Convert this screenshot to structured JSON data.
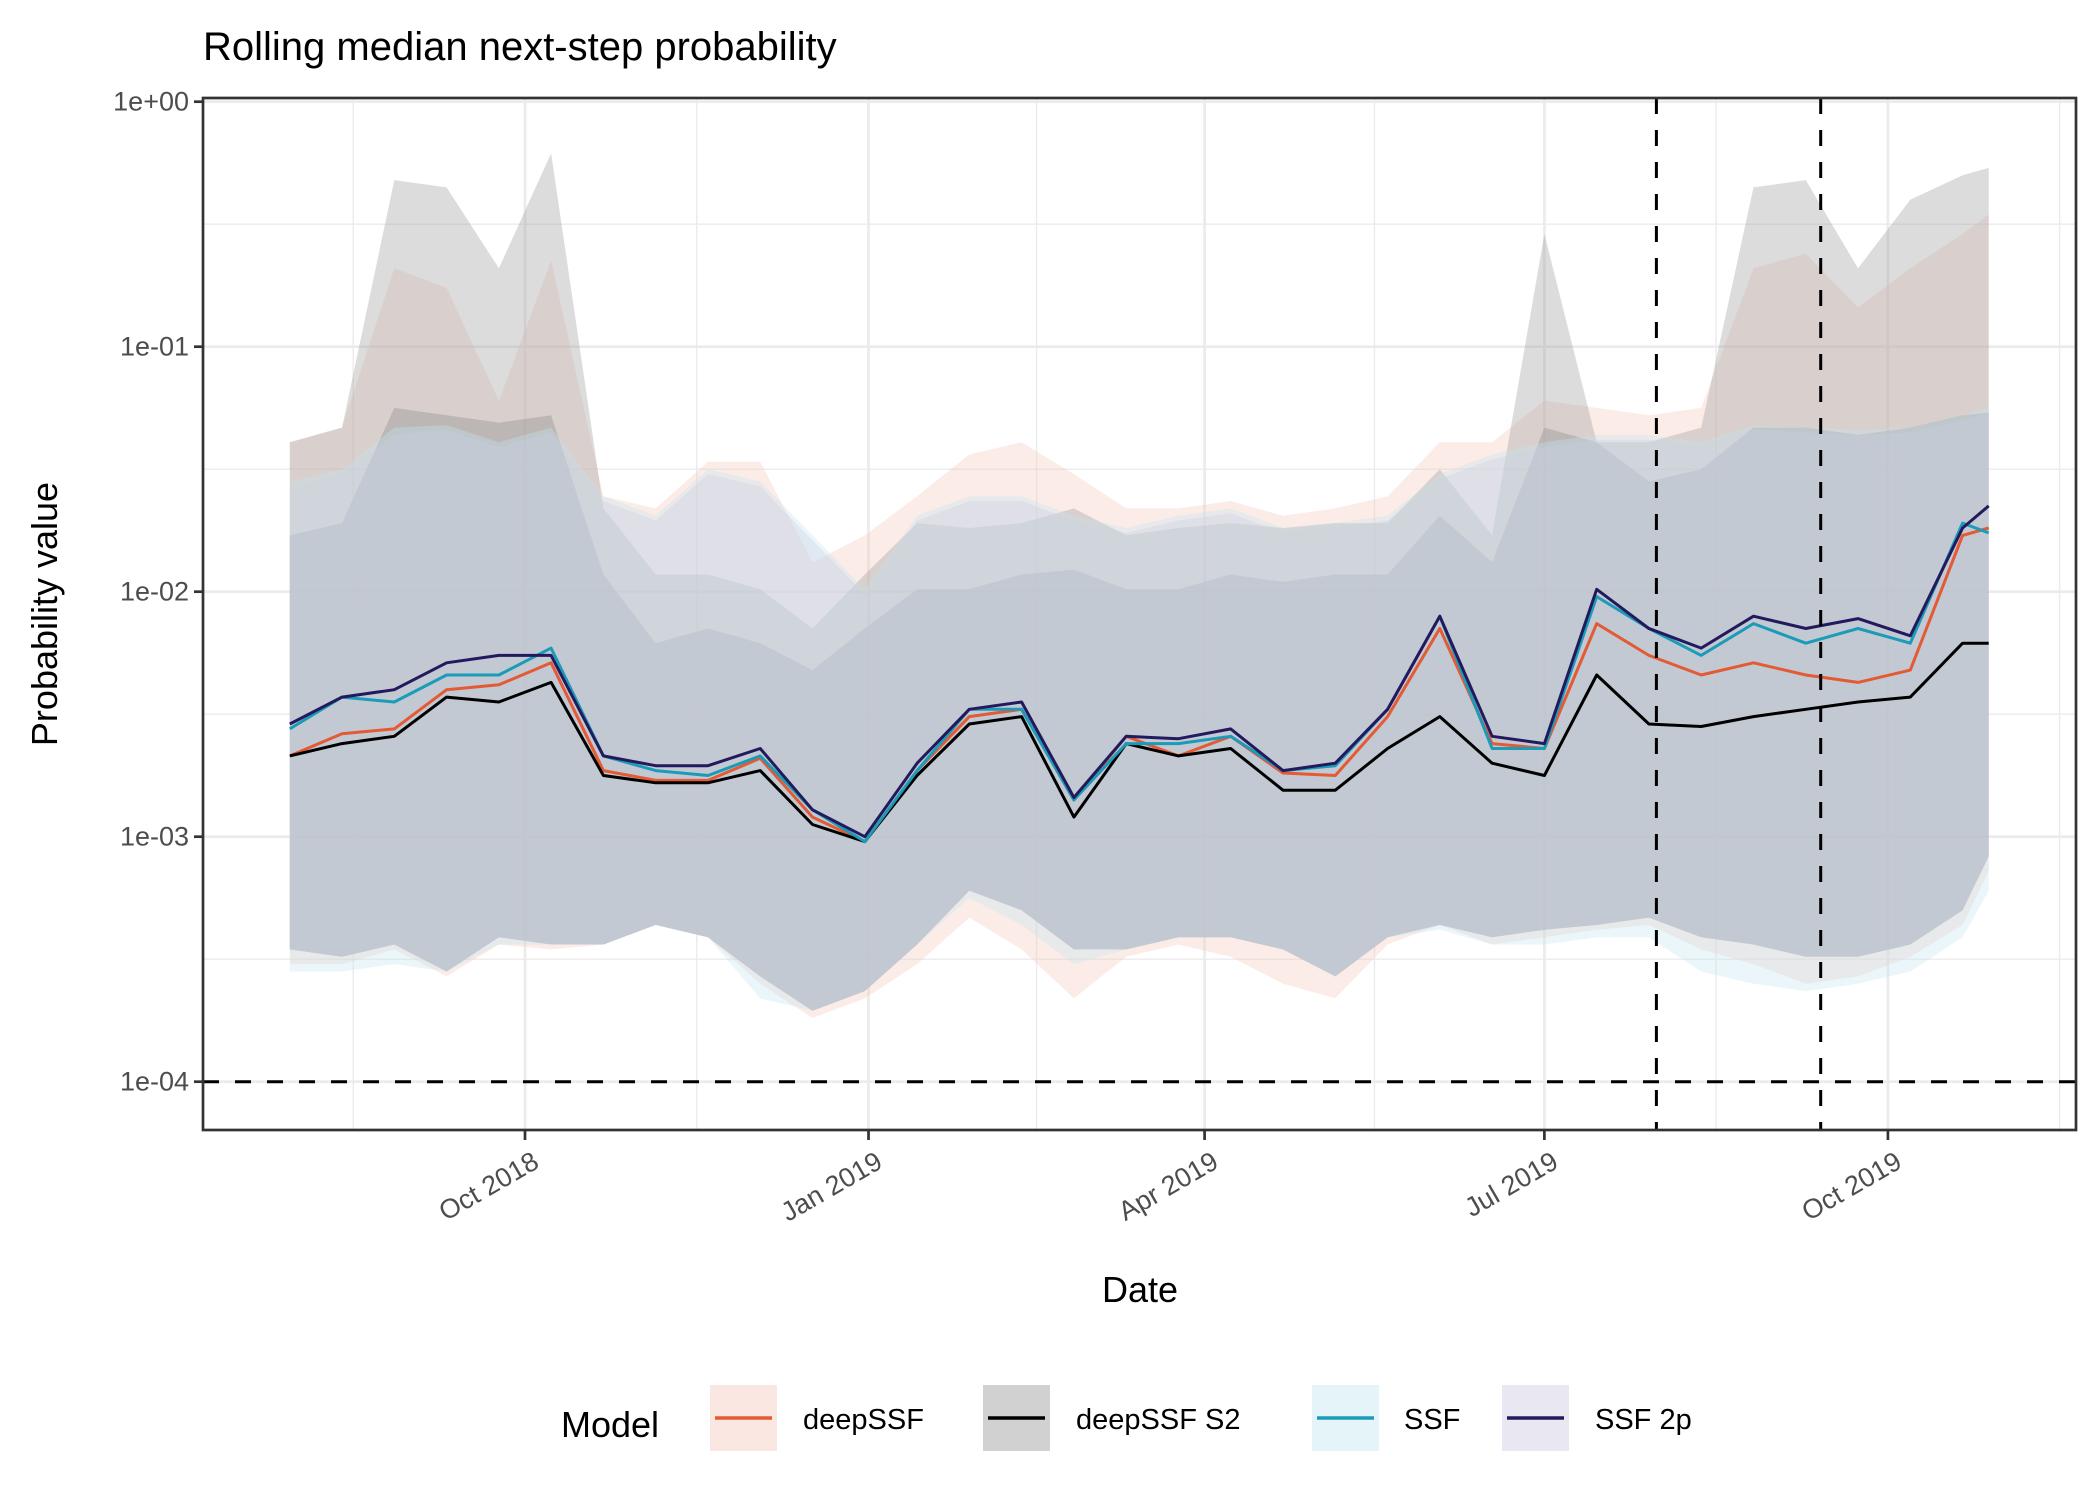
{
  "chart_data": {
    "type": "line",
    "title": "Rolling median next-step probability",
    "xlabel": "Date",
    "ylabel": "Probability value",
    "y_scale": "log10",
    "ylim": [
      7e-05,
      1
    ],
    "yticks": [
      {
        "value": 1,
        "label": "1e+00"
      },
      {
        "value": 0.1,
        "label": "1e-01"
      },
      {
        "value": 0.01,
        "label": "1e-02"
      },
      {
        "value": 0.001,
        "label": "1e-03"
      },
      {
        "value": 0.0001,
        "label": "1e-04"
      }
    ],
    "xlim": [
      "2018-06-27",
      "2019-11-19"
    ],
    "xticks": [
      {
        "date": "2018-10-01",
        "label": "Oct 2018"
      },
      {
        "date": "2019-01-01",
        "label": "Jan 2019"
      },
      {
        "date": "2019-04-01",
        "label": "Apr 2019"
      },
      {
        "date": "2019-07-01",
        "label": "Jul 2019"
      },
      {
        "date": "2019-10-01",
        "label": "Oct 2019"
      }
    ],
    "grid": true,
    "reference_lines": {
      "horizontal": [
        {
          "value": 0.0001,
          "style": "dashed"
        }
      ],
      "vertical": [
        {
          "date": "2019-07-31",
          "style": "dashed"
        },
        {
          "date": "2019-09-13",
          "style": "dashed"
        }
      ]
    },
    "legend": {
      "title": "Model",
      "position": "bottom"
    },
    "x": [
      "2018-07-30",
      "2018-08-13",
      "2018-08-27",
      "2018-09-10",
      "2018-09-24",
      "2018-10-08",
      "2018-10-22",
      "2018-11-05",
      "2018-11-19",
      "2018-12-03",
      "2018-12-17",
      "2018-12-31",
      "2019-01-14",
      "2019-01-28",
      "2019-02-11",
      "2019-02-25",
      "2019-03-11",
      "2019-03-25",
      "2019-04-08",
      "2019-04-22",
      "2019-05-06",
      "2019-05-20",
      "2019-06-03",
      "2019-06-17",
      "2019-07-01",
      "2019-07-15",
      "2019-07-29",
      "2019-08-12",
      "2019-08-26",
      "2019-09-09",
      "2019-09-23",
      "2019-10-07",
      "2019-10-21",
      "2019-10-28"
    ],
    "series": [
      {
        "name": "deepSSF",
        "color": "#e35a35",
        "band_fill": "#f4c9bd",
        "median_log10": [
          -2.67,
          -2.58,
          -2.56,
          -2.4,
          -2.38,
          -2.29,
          -2.73,
          -2.77,
          -2.77,
          -2.68,
          -2.92,
          -3.02,
          -2.73,
          -2.51,
          -2.48,
          -2.85,
          -2.59,
          -2.67,
          -2.59,
          -2.74,
          -2.75,
          -2.51,
          -2.15,
          -2.62,
          -2.64,
          -2.13,
          -2.26,
          -2.34,
          -2.29,
          -2.34,
          -2.37,
          -2.32,
          -1.77,
          -1.74
        ],
        "band_upper_log10": [
          -1.39,
          -1.33,
          -0.68,
          -0.76,
          -1.22,
          -0.65,
          -1.61,
          -1.66,
          -1.47,
          -1.47,
          -1.88,
          -1.77,
          -1.61,
          -1.44,
          -1.39,
          -1.52,
          -1.66,
          -1.66,
          -1.63,
          -1.69,
          -1.66,
          -1.61,
          -1.39,
          -1.39,
          -1.22,
          -1.25,
          -1.28,
          -1.25,
          -0.68,
          -0.62,
          -0.84,
          -0.68,
          -0.54,
          -0.46
        ],
        "band_lower_log10": [
          -3.52,
          -3.52,
          -3.46,
          -3.57,
          -3.44,
          -3.46,
          -3.44,
          -3.36,
          -3.41,
          -3.6,
          -3.74,
          -3.66,
          -3.52,
          -3.33,
          -3.46,
          -3.66,
          -3.49,
          -3.44,
          -3.49,
          -3.6,
          -3.66,
          -3.44,
          -3.36,
          -3.44,
          -3.41,
          -3.38,
          -3.36,
          -3.46,
          -3.52,
          -3.6,
          -3.57,
          -3.49,
          -3.36,
          -3.14
        ]
      },
      {
        "name": "deepSSF S2",
        "color": "#000000",
        "band_fill": "#9a9a9a",
        "median_log10": [
          -2.67,
          -2.62,
          -2.59,
          -2.43,
          -2.45,
          -2.37,
          -2.75,
          -2.78,
          -2.78,
          -2.73,
          -2.95,
          -3.02,
          -2.75,
          -2.54,
          -2.51,
          -2.92,
          -2.62,
          -2.67,
          -2.64,
          -2.81,
          -2.81,
          -2.64,
          -2.51,
          -2.7,
          -2.75,
          -2.34,
          -2.54,
          -2.55,
          -2.51,
          -2.48,
          -2.45,
          -2.43,
          -2.21,
          -2.21
        ],
        "band_upper_log10": [
          -1.39,
          -1.33,
          -0.32,
          -0.35,
          -0.68,
          -0.21,
          -1.66,
          -1.93,
          -1.93,
          -1.99,
          -2.15,
          -1.93,
          -1.72,
          -1.74,
          -1.72,
          -1.66,
          -1.77,
          -1.74,
          -1.72,
          -1.74,
          -1.72,
          -1.72,
          -1.5,
          -1.77,
          -0.54,
          -1.39,
          -1.39,
          -1.33,
          -0.35,
          -0.32,
          -0.68,
          -0.4,
          -0.3,
          -0.27
        ],
        "band_lower_log10": [
          -3.46,
          -3.49,
          -3.44,
          -3.55,
          -3.41,
          -3.44,
          -3.44,
          -3.36,
          -3.41,
          -3.57,
          -3.71,
          -3.63,
          -3.44,
          -3.22,
          -3.3,
          -3.46,
          -3.46,
          -3.41,
          -3.41,
          -3.46,
          -3.57,
          -3.41,
          -3.36,
          -3.41,
          -3.38,
          -3.36,
          -3.33,
          -3.41,
          -3.44,
          -3.49,
          -3.49,
          -3.44,
          -3.3,
          -3.08
        ],
        "inner_band_upper_log10": [
          -1.77,
          -1.72,
          -1.25,
          -1.28,
          -1.31,
          -1.28,
          -1.93,
          -2.21,
          -2.15,
          -2.21,
          -2.32,
          -2.15,
          -1.99,
          -1.99,
          -1.93,
          -1.91,
          -1.99,
          -1.99,
          -1.93,
          -1.96,
          -1.93,
          -1.93,
          -1.69,
          -1.88,
          -1.33,
          -1.39,
          -1.55,
          -1.5,
          -1.33,
          -1.33,
          -1.36,
          -1.33,
          -1.28,
          -1.27
        ]
      },
      {
        "name": "SSF",
        "color": "#1a9bb8",
        "band_fill": "#c3e6ef",
        "median_log10": [
          -2.56,
          -2.43,
          -2.45,
          -2.34,
          -2.34,
          -2.23,
          -2.67,
          -2.73,
          -2.75,
          -2.67,
          -2.89,
          -3.02,
          -2.73,
          -2.48,
          -2.48,
          -2.85,
          -2.62,
          -2.62,
          -2.59,
          -2.73,
          -2.71,
          -2.48,
          -2.1,
          -2.64,
          -2.64,
          -2.02,
          -2.15,
          -2.26,
          -2.13,
          -2.21,
          -2.15,
          -2.21,
          -1.72,
          -1.76
        ],
        "band_upper_log10": [
          -1.55,
          -1.5,
          -1.33,
          -1.32,
          -1.39,
          -1.33,
          -1.61,
          -1.69,
          -1.5,
          -1.55,
          -1.77,
          -1.99,
          -1.69,
          -1.61,
          -1.61,
          -1.69,
          -1.74,
          -1.69,
          -1.66,
          -1.74,
          -1.72,
          -1.69,
          -1.52,
          -1.44,
          -1.39,
          -1.36,
          -1.36,
          -1.39,
          -1.32,
          -1.33,
          -1.34,
          -1.33,
          -1.28,
          -1.25
        ],
        "band_lower_log10": [
          -3.55,
          -3.55,
          -3.52,
          -3.55,
          -3.44,
          -3.44,
          -3.44,
          -3.36,
          -3.41,
          -3.66,
          -3.71,
          -3.63,
          -3.44,
          -3.25,
          -3.36,
          -3.52,
          -3.46,
          -3.41,
          -3.41,
          -3.46,
          -3.57,
          -3.41,
          -3.38,
          -3.44,
          -3.44,
          -3.41,
          -3.41,
          -3.55,
          -3.6,
          -3.63,
          -3.6,
          -3.55,
          -3.41,
          -3.22
        ]
      },
      {
        "name": "SSF 2p",
        "color": "#231a5e",
        "band_fill": "#cfcde2",
        "median_log10": [
          -2.54,
          -2.43,
          -2.4,
          -2.29,
          -2.26,
          -2.26,
          -2.67,
          -2.71,
          -2.71,
          -2.64,
          -2.89,
          -3.0,
          -2.7,
          -2.48,
          -2.45,
          -2.84,
          -2.59,
          -2.6,
          -2.56,
          -2.73,
          -2.7,
          -2.48,
          -2.1,
          -2.59,
          -2.62,
          -1.99,
          -2.15,
          -2.23,
          -2.1,
          -2.15,
          -2.11,
          -2.18,
          -1.74,
          -1.65
        ],
        "band_upper_log10": [
          -1.58,
          -1.52,
          -1.36,
          -1.34,
          -1.41,
          -1.35,
          -1.63,
          -1.71,
          -1.52,
          -1.57,
          -1.79,
          -2.01,
          -1.71,
          -1.63,
          -1.63,
          -1.71,
          -1.76,
          -1.71,
          -1.68,
          -1.76,
          -1.74,
          -1.71,
          -1.54,
          -1.46,
          -1.41,
          -1.38,
          -1.38,
          -1.41,
          -1.34,
          -1.35,
          -1.36,
          -1.35,
          -1.3,
          -1.27
        ],
        "band_lower_log10": [
          -3.46,
          -3.49,
          -3.44,
          -3.55,
          -3.41,
          -3.44,
          -3.44,
          -3.36,
          -3.41,
          -3.57,
          -3.71,
          -3.63,
          -3.44,
          -3.22,
          -3.3,
          -3.46,
          -3.46,
          -3.41,
          -3.41,
          -3.46,
          -3.57,
          -3.41,
          -3.36,
          -3.41,
          -3.38,
          -3.36,
          -3.33,
          -3.41,
          -3.44,
          -3.49,
          -3.49,
          -3.44,
          -3.3,
          -3.08
        ]
      }
    ]
  }
}
